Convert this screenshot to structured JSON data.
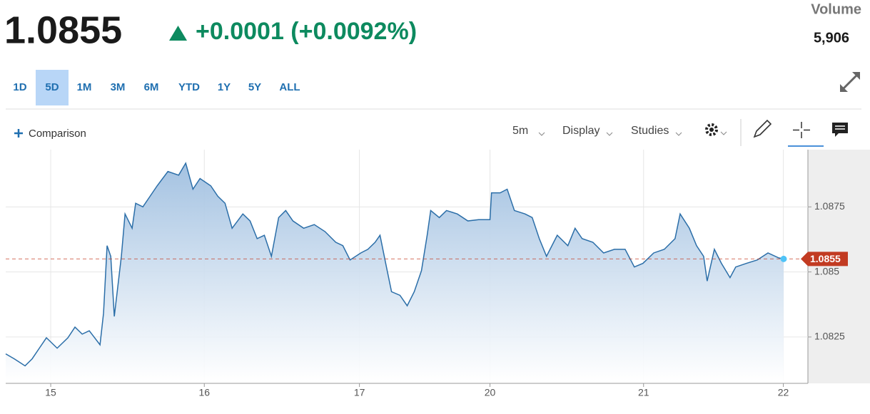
{
  "header": {
    "price": "1.0855",
    "change": "+0.0001 (+0.0092%)",
    "volume_label": "Volume",
    "volume": "5,906"
  },
  "ranges": [
    "1D",
    "5D",
    "1M",
    "3M",
    "6M",
    "YTD",
    "1Y",
    "5Y",
    "ALL"
  ],
  "active_range": 1,
  "toolbar": {
    "comparison": "Comparison",
    "interval": "5m",
    "display": "Display",
    "studies": "Studies"
  },
  "chart_data": {
    "type": "area",
    "x": [
      -0.293,
      -0.237,
      -0.167,
      -0.121,
      -0.074,
      -0.028,
      0.042,
      0.112,
      0.158,
      0.205,
      0.251,
      0.321,
      0.344,
      0.367,
      0.391,
      0.414,
      0.46,
      0.484,
      0.53,
      0.553,
      0.6,
      0.647,
      0.693,
      0.763,
      0.833,
      0.879,
      0.926,
      0.972,
      1.042,
      1.088,
      1.135,
      1.181,
      1.251,
      1.298,
      1.344,
      1.391,
      1.437,
      1.484,
      1.53,
      1.577,
      1.647,
      1.716,
      1.786,
      1.856,
      1.902,
      1.949,
      2.019,
      2.065,
      2.112,
      2.144,
      2.181,
      2.219,
      2.274,
      2.321,
      2.367,
      2.414,
      2.451,
      2.474,
      2.53,
      2.577,
      2.647,
      2.716,
      2.786,
      2.86,
      2.87,
      2.926,
      2.972,
      3.019,
      3.088,
      3.135,
      3.181,
      3.228,
      3.298,
      3.367,
      3.414,
      3.46,
      3.53,
      3.6,
      3.67,
      3.74,
      3.8,
      3.856,
      3.926,
      3.995,
      4.065,
      4.098,
      4.158,
      4.205,
      4.251,
      4.274,
      4.321,
      4.367,
      4.423,
      4.46,
      4.53,
      4.6,
      4.67,
      4.74,
      4.772
    ],
    "values": [
      1.08185,
      1.08166,
      1.08139,
      1.08166,
      1.08207,
      1.08247,
      1.08207,
      1.08247,
      1.08288,
      1.08261,
      1.08274,
      1.0822,
      1.08342,
      1.08601,
      1.0856,
      1.08329,
      1.0856,
      1.08723,
      1.08668,
      1.08764,
      1.0875,
      1.08791,
      1.08831,
      1.08886,
      1.08872,
      1.08918,
      1.08818,
      1.08859,
      1.08831,
      1.08791,
      1.08764,
      1.08668,
      1.08723,
      1.08696,
      1.08628,
      1.08641,
      1.0856,
      1.08709,
      1.08736,
      1.08696,
      1.08668,
      1.08682,
      1.08655,
      1.08614,
      1.08601,
      1.08546,
      1.08573,
      1.08587,
      1.08614,
      1.08641,
      1.08533,
      1.08424,
      1.0841,
      1.0837,
      1.08424,
      1.08505,
      1.08641,
      1.08736,
      1.08709,
      1.08736,
      1.08723,
      1.08696,
      1.08701,
      1.08701,
      1.08804,
      1.08804,
      1.08818,
      1.08736,
      1.08723,
      1.08709,
      1.08628,
      1.0856,
      1.08641,
      1.08601,
      1.08668,
      1.08628,
      1.08614,
      1.08573,
      1.08587,
      1.08587,
      1.08519,
      1.08533,
      1.08573,
      1.08587,
      1.08628,
      1.08723,
      1.08668,
      1.08601,
      1.0856,
      1.08465,
      1.08587,
      1.08533,
      1.08478,
      1.08519,
      1.08533,
      1.08546,
      1.08573,
      1.08554,
      1.0855
    ],
    "color": "#2b6ea8",
    "last_price": 1.0855,
    "last_color": "#c23b22",
    "xlim": [
      -0.293,
      4.93
    ],
    "xticks": [
      {
        "value": 0,
        "label": "15"
      },
      {
        "value": 1.0,
        "label": "16"
      },
      {
        "value": 2.01,
        "label": "17"
      },
      {
        "value": 2.86,
        "label": "20"
      },
      {
        "value": 3.86,
        "label": "21"
      },
      {
        "value": 4.77,
        "label": "22"
      }
    ],
    "ylim": [
      1.0808,
      1.0897
    ],
    "yticks": [
      1.0825,
      1.085,
      1.0875
    ],
    "grid": true
  }
}
